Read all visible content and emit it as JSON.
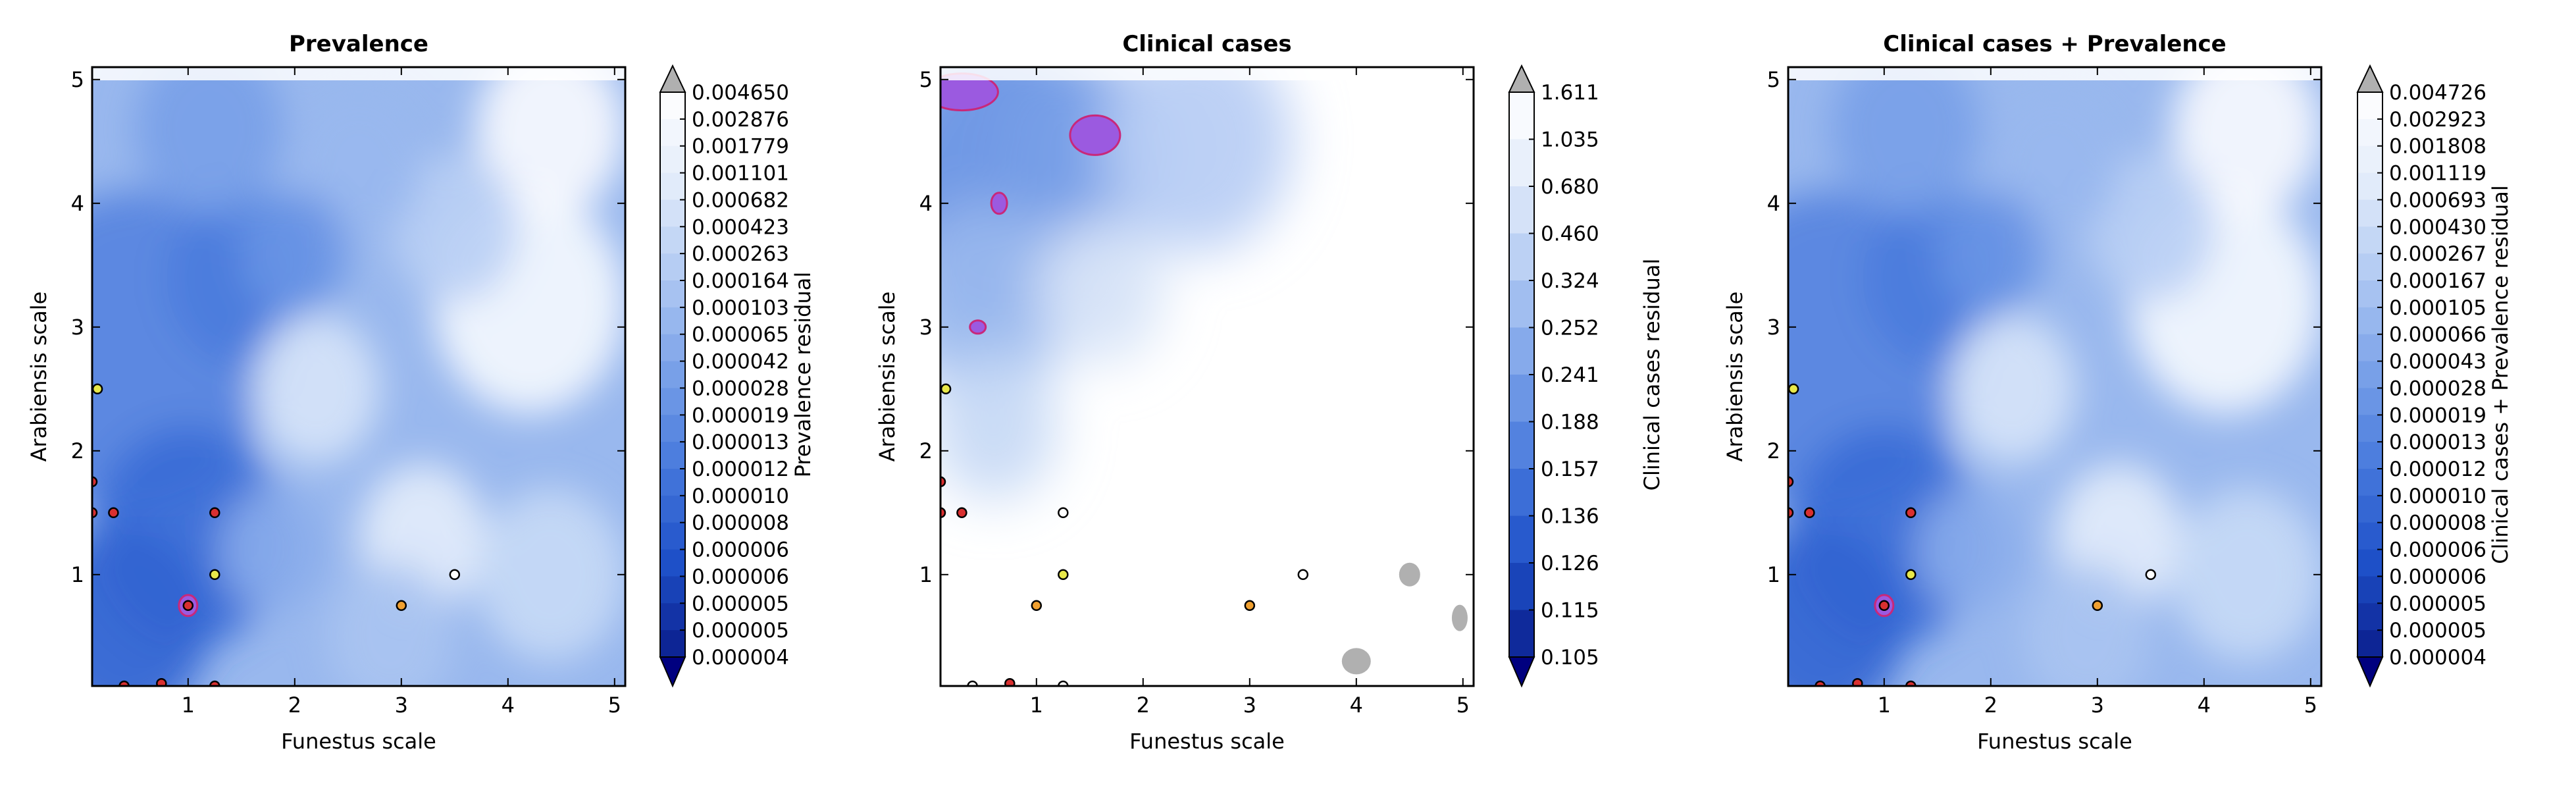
{
  "chart_data": [
    {
      "type": "heatmap",
      "title": "Prevalence",
      "xlabel": "Funestus scale",
      "ylabel": "Arabiensis scale",
      "xlim": [
        0.1,
        5.1
      ],
      "ylim": [
        0.1,
        5.1
      ],
      "xticks": [
        "1",
        "2",
        "3",
        "4",
        "5"
      ],
      "yticks": [
        "1",
        "2",
        "3",
        "4",
        "5"
      ],
      "colorbar_label": "Prevalence residual",
      "colorbar_ticks": [
        "0.004650",
        "0.002876",
        "0.001779",
        "0.001101",
        "0.000682",
        "0.000423",
        "0.000263",
        "0.000164",
        "0.000103",
        "0.000065",
        "0.000042",
        "0.000028",
        "0.000019",
        "0.000013",
        "0.000012",
        "0.000010",
        "0.000008",
        "0.000006",
        "0.000006",
        "0.000005",
        "0.000005",
        "0.000004"
      ],
      "levels": [
        0.00465,
        0.002876,
        0.001779,
        0.001101,
        0.000682,
        0.000423,
        0.000263,
        0.000164,
        0.000103,
        6.5e-05,
        4.2e-05,
        2.8e-05,
        1.9e-05,
        1.3e-05,
        1.2e-05,
        1e-05,
        8e-06,
        6e-06,
        6e-06,
        5e-06,
        5e-06,
        4e-06
      ],
      "points": [
        {
          "x": 0.15,
          "y": 2.5,
          "color": "#e8e84a"
        },
        {
          "x": 0.1,
          "y": 1.75,
          "color": "#d93030"
        },
        {
          "x": 0.1,
          "y": 1.5,
          "color": "#d93030"
        },
        {
          "x": 0.3,
          "y": 1.5,
          "color": "#d93030"
        },
        {
          "x": 1.25,
          "y": 1.5,
          "color": "#d93030"
        },
        {
          "x": 1.25,
          "y": 1.0,
          "color": "#e8e84a"
        },
        {
          "x": 3.0,
          "y": 0.75,
          "color": "#f0a030"
        },
        {
          "x": 3.5,
          "y": 1.0,
          "color": "#ffffff"
        },
        {
          "x": 1.0,
          "y": 0.75,
          "color": "#d93030"
        },
        {
          "x": 0.4,
          "y": 0.1,
          "color": "#d93030"
        },
        {
          "x": 0.75,
          "y": 0.12,
          "color": "#d93030"
        },
        {
          "x": 1.25,
          "y": 0.1,
          "color": "#d93030"
        }
      ]
    },
    {
      "type": "heatmap",
      "title": "Clinical cases",
      "xlabel": "Funestus scale",
      "ylabel": "Arabiensis scale",
      "xlim": [
        0.1,
        5.1
      ],
      "ylim": [
        0.1,
        5.1
      ],
      "xticks": [
        "1",
        "2",
        "3",
        "4",
        "5"
      ],
      "yticks": [
        "1",
        "2",
        "3",
        "4",
        "5"
      ],
      "colorbar_label": "Clinical cases residual",
      "colorbar_ticks": [
        "1.611",
        "1.035",
        "0.680",
        "0.460",
        "0.324",
        "0.252",
        "0.241",
        "0.188",
        "0.157",
        "0.136",
        "0.126",
        "0.115",
        "0.105"
      ],
      "levels": [
        1.611,
        1.035,
        0.68,
        0.46,
        0.324,
        0.252,
        0.241,
        0.188,
        0.157,
        0.136,
        0.126,
        0.115,
        0.105
      ],
      "points": [
        {
          "x": 0.15,
          "y": 2.5,
          "color": "#e8e84a"
        },
        {
          "x": 0.1,
          "y": 1.75,
          "color": "#d93030"
        },
        {
          "x": 0.1,
          "y": 1.5,
          "color": "#d93030"
        },
        {
          "x": 0.3,
          "y": 1.5,
          "color": "#d93030"
        },
        {
          "x": 1.25,
          "y": 1.5,
          "color": "#ffffff"
        },
        {
          "x": 1.25,
          "y": 1.0,
          "color": "#e8e84a"
        },
        {
          "x": 1.0,
          "y": 0.75,
          "color": "#f0a030"
        },
        {
          "x": 3.0,
          "y": 0.75,
          "color": "#f0a030"
        },
        {
          "x": 3.5,
          "y": 1.0,
          "color": "#ffffff"
        },
        {
          "x": 0.75,
          "y": 0.12,
          "color": "#d93030"
        },
        {
          "x": 0.4,
          "y": 0.1,
          "color": "#ffffff"
        },
        {
          "x": 1.25,
          "y": 0.1,
          "color": "#ffffff"
        }
      ]
    },
    {
      "type": "heatmap",
      "title": "Clinical cases + Prevalence",
      "xlabel": "Funestus scale",
      "ylabel": "Arabiensis scale",
      "xlim": [
        0.1,
        5.1
      ],
      "ylim": [
        0.1,
        5.1
      ],
      "xticks": [
        "1",
        "2",
        "3",
        "4",
        "5"
      ],
      "yticks": [
        "1",
        "2",
        "3",
        "4",
        "5"
      ],
      "colorbar_label": "Clinical cases + Prevalence residual",
      "colorbar_ticks": [
        "0.004726",
        "0.002923",
        "0.001808",
        "0.001119",
        "0.000693",
        "0.000430",
        "0.000267",
        "0.000167",
        "0.000105",
        "0.000066",
        "0.000043",
        "0.000028",
        "0.000019",
        "0.000013",
        "0.000012",
        "0.000010",
        "0.000008",
        "0.000006",
        "0.000006",
        "0.000005",
        "0.000005",
        "0.000004"
      ],
      "levels": [
        0.004726,
        0.002923,
        0.001808,
        0.001119,
        0.000693,
        0.00043,
        0.000267,
        0.000167,
        0.000105,
        6.6e-05,
        4.3e-05,
        2.8e-05,
        1.9e-05,
        1.3e-05,
        1.2e-05,
        1e-05,
        8e-06,
        6e-06,
        6e-06,
        5e-06,
        5e-06,
        4e-06
      ],
      "points": [
        {
          "x": 0.15,
          "y": 2.5,
          "color": "#e8e84a"
        },
        {
          "x": 0.1,
          "y": 1.75,
          "color": "#d93030"
        },
        {
          "x": 0.1,
          "y": 1.5,
          "color": "#d93030"
        },
        {
          "x": 0.3,
          "y": 1.5,
          "color": "#d93030"
        },
        {
          "x": 1.25,
          "y": 1.5,
          "color": "#d93030"
        },
        {
          "x": 1.25,
          "y": 1.0,
          "color": "#e8e84a"
        },
        {
          "x": 3.0,
          "y": 0.75,
          "color": "#f0a030"
        },
        {
          "x": 3.5,
          "y": 1.0,
          "color": "#ffffff"
        },
        {
          "x": 1.0,
          "y": 0.75,
          "color": "#d93030"
        },
        {
          "x": 0.4,
          "y": 0.1,
          "color": "#d93030"
        },
        {
          "x": 0.75,
          "y": 0.12,
          "color": "#d93030"
        },
        {
          "x": 1.25,
          "y": 0.1,
          "color": "#d93030"
        }
      ]
    }
  ],
  "colors": {
    "cbar_top": "#ffffff",
    "cbar_bottom": "#0a1e8c",
    "extend_over": "#b0b0b0",
    "extend_under": "#00007f",
    "highlight_outline": "#c8287a"
  }
}
